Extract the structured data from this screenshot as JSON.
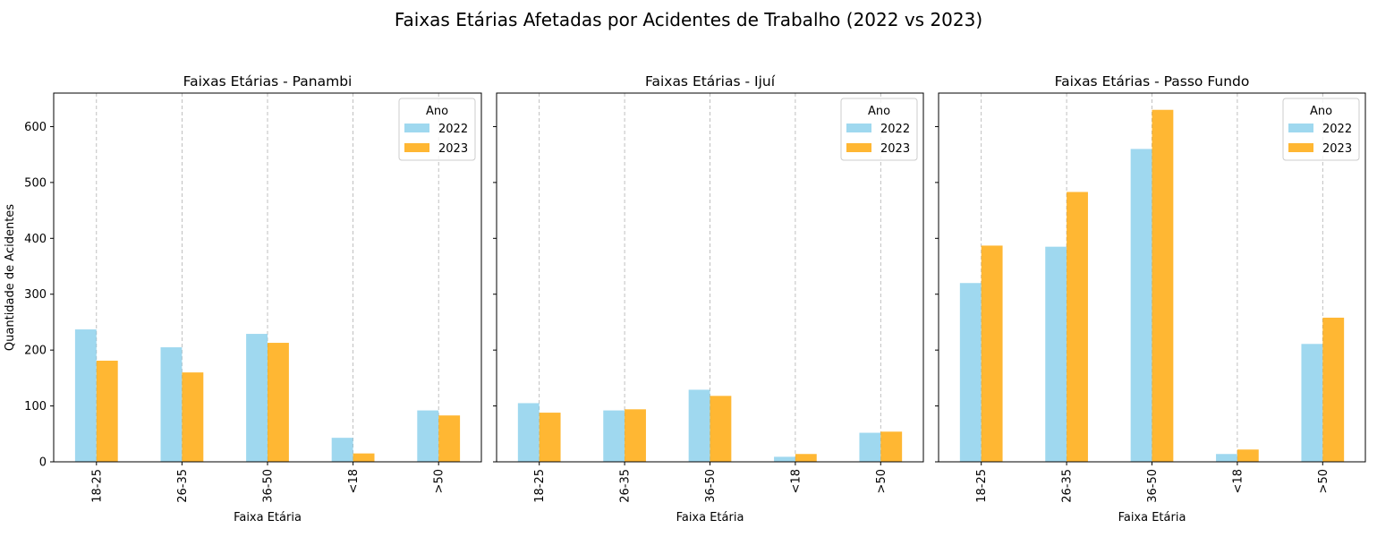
{
  "figure_title": "Faixas Etárias Afetadas por Acidentes de Trabalho (2022 vs 2023)",
  "ylabel": "Quantidade de Acidentes",
  "colors": {
    "2022": "#87CEEB",
    "2023": "#FFA500"
  },
  "chart_data": [
    {
      "type": "bar",
      "title": "Faixas Etárias - Panambi",
      "xlabel": "Faixa Etária",
      "ylabel": "Quantidade de Acidentes",
      "categories": [
        "18-25",
        "26-35",
        "36-50",
        "<18",
        ">50"
      ],
      "ylim": [
        0,
        660
      ],
      "yticks": [
        0,
        100,
        200,
        300,
        400,
        500,
        600
      ],
      "legend": {
        "title": "Ano",
        "position": "top-right"
      },
      "grid": "x-dashed",
      "series": [
        {
          "name": "2022",
          "values": [
            237,
            205,
            229,
            43,
            92
          ]
        },
        {
          "name": "2023",
          "values": [
            181,
            160,
            213,
            15,
            83
          ]
        }
      ]
    },
    {
      "type": "bar",
      "title": "Faixas Etárias - Ijuí",
      "xlabel": "Faixa Etária",
      "ylabel": "",
      "categories": [
        "18-25",
        "26-35",
        "36-50",
        "<18",
        ">50"
      ],
      "ylim": [
        0,
        660
      ],
      "yticks": [
        0,
        100,
        200,
        300,
        400,
        500,
        600
      ],
      "legend": {
        "title": "Ano",
        "position": "top-right"
      },
      "grid": "x-dashed",
      "series": [
        {
          "name": "2022",
          "values": [
            105,
            92,
            129,
            9,
            52
          ]
        },
        {
          "name": "2023",
          "values": [
            88,
            94,
            118,
            14,
            54
          ]
        }
      ]
    },
    {
      "type": "bar",
      "title": "Faixas Etárias - Passo Fundo",
      "xlabel": "Faixa Etária",
      "ylabel": "",
      "categories": [
        "18-25",
        "26-35",
        "36-50",
        "<18",
        ">50"
      ],
      "ylim": [
        0,
        660
      ],
      "yticks": [
        0,
        100,
        200,
        300,
        400,
        500,
        600
      ],
      "legend": {
        "title": "Ano",
        "position": "top-right"
      },
      "grid": "x-dashed",
      "series": [
        {
          "name": "2022",
          "values": [
            320,
            385,
            560,
            14,
            211
          ]
        },
        {
          "name": "2023",
          "values": [
            387,
            483,
            630,
            22,
            258
          ]
        }
      ]
    }
  ]
}
